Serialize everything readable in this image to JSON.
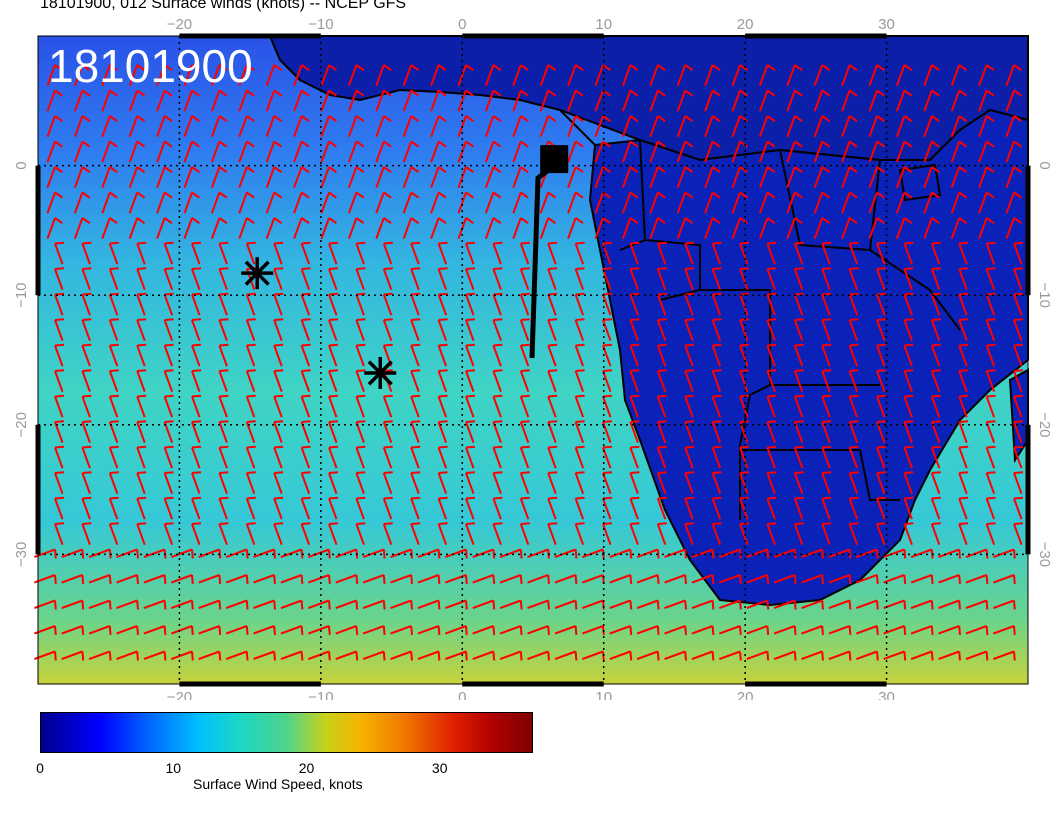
{
  "title": "18101900, 012 Surface winds (knots) -- NCEP GFS",
  "overlay_label": "18101900",
  "map": {
    "lon_ticks": [
      {
        "lon": -20,
        "label": "−20"
      },
      {
        "lon": -10,
        "label": "−10"
      },
      {
        "lon": 0,
        "label": "0"
      },
      {
        "lon": 10,
        "label": "10"
      },
      {
        "lon": 20,
        "label": "20"
      },
      {
        "lon": 30,
        "label": "30"
      }
    ],
    "lat_ticks": [
      {
        "lat": 0,
        "label": "0"
      },
      {
        "lat": -10,
        "label": "−10"
      },
      {
        "lat": -20,
        "label": "−20"
      },
      {
        "lat": -30,
        "label": "−30"
      }
    ],
    "lon_range": [
      -30,
      40
    ],
    "lat_range": [
      -40,
      10
    ],
    "markers": [
      {
        "type": "asterisk",
        "lon": -14.5,
        "lat": -8.3
      },
      {
        "type": "asterisk",
        "lon": -5.8,
        "lat": -16.0
      },
      {
        "type": "square",
        "lon": 6.5,
        "lat": 0.5
      }
    ],
    "barb_color": "#ff0000"
  },
  "colorbar": {
    "ticks": [
      {
        "value": 0,
        "label": "0"
      },
      {
        "value": 10,
        "label": "10"
      },
      {
        "value": 20,
        "label": "20"
      },
      {
        "value": 30,
        "label": "30"
      }
    ],
    "range": [
      0,
      37
    ],
    "label": "Surface Wind Speed, knots"
  }
}
